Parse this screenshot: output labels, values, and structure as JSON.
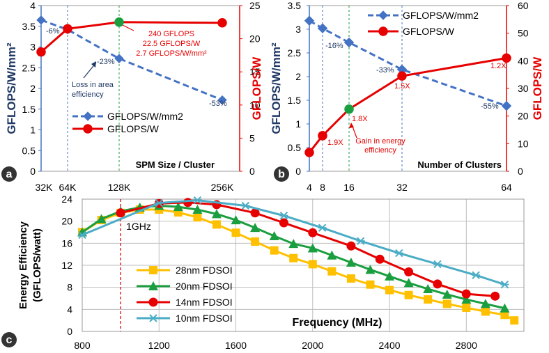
{
  "colors": {
    "blue": "#4472c4",
    "blue_text": "#1f3864",
    "red": "#e60000",
    "green": "#1a9e3f",
    "orange": "#ffc000",
    "teal": "#4bacc6",
    "grid": "#bdbdbd"
  },
  "chart_data": [
    {
      "panel": "a",
      "type": "line",
      "title": "",
      "xlabel": "SPM Size / Cluster",
      "categories": [
        "32K",
        "64K",
        "128K",
        "256K"
      ],
      "y_left": {
        "label": "GFLOPS/W/mm²",
        "lim": [
          0,
          4
        ],
        "ticks": [
          "0",
          "0.5",
          "1",
          "1.5",
          "2",
          "2.5",
          "3",
          "3.5",
          "4"
        ]
      },
      "y_right": {
        "label": "GFLOPS/W",
        "lim": [
          0,
          25
        ],
        "ticks": [
          "0",
          "5",
          "10",
          "15",
          "20",
          "25"
        ]
      },
      "series": [
        {
          "name": "GFLOPS/W/mm2",
          "axis": "left",
          "style": "dashed-diamond",
          "values": [
            3.65,
            3.42,
            2.72,
            1.72
          ],
          "labels": [
            "",
            "-6%",
            "-23%",
            "-53%"
          ]
        },
        {
          "name": "GFLOPS/W",
          "axis": "right",
          "style": "solid-circle",
          "values": [
            18.0,
            21.5,
            22.5,
            22.4
          ]
        }
      ],
      "annotations": {
        "highlight": [
          "240 GFLOPS",
          "22.5 GFLOPS/W",
          "2.7 GFLOPS/W/mm²"
        ],
        "note": [
          "Loss in area",
          "efficiency"
        ]
      },
      "legend": "bottom-left",
      "badge": "a"
    },
    {
      "panel": "b",
      "type": "line",
      "title": "",
      "xlabel": "Number of Clusters",
      "categories": [
        "4",
        "8",
        "16",
        "32",
        "64"
      ],
      "x_values": [
        4,
        8,
        16,
        32,
        64
      ],
      "y_left": {
        "label": "GFLOPS/W/mm²",
        "lim": [
          0,
          3.5
        ],
        "ticks": [
          "0",
          "0.5",
          "1",
          "1.5",
          "2",
          "2.5",
          "3",
          "3.5"
        ]
      },
      "y_right": {
        "label": "GFLOPS/W",
        "lim": [
          0,
          60
        ],
        "ticks": [
          "0",
          "10",
          "20",
          "30",
          "40",
          "50",
          "60"
        ]
      },
      "series": [
        {
          "name": "GFLOPS/W/mm2",
          "axis": "left",
          "style": "dashed-diamond",
          "values": [
            3.18,
            3.02,
            2.72,
            2.15,
            1.38
          ],
          "labels": [
            "",
            "",
            "-16%",
            "-33%",
            "-55%"
          ]
        },
        {
          "name": "GFLOPS/W",
          "axis": "right",
          "style": "solid-circle",
          "values": [
            6.8,
            12.9,
            22.5,
            34.5,
            41.0
          ],
          "labels": [
            "",
            "1.9X",
            "1.8X",
            "1.5X",
            "1.2X"
          ]
        }
      ],
      "annotations": {
        "note": [
          "Gain in energy",
          "efficiency"
        ]
      },
      "legend": "top-right",
      "badge": "b"
    },
    {
      "panel": "c",
      "type": "line",
      "title": "",
      "xlabel": "Frequency (MHz)",
      "ylabel": "Energy Efficiency (GFLOPS/watt)",
      "xlim": [
        800,
        3100
      ],
      "ylim": [
        0,
        24
      ],
      "x_ticks": [
        "800",
        "1200",
        "1600",
        "2000",
        "2400",
        "2800"
      ],
      "y_ticks": [
        "0",
        "4",
        "8",
        "12",
        "16",
        "20",
        "24"
      ],
      "marker_line": {
        "x": 1000,
        "label": "1GHz"
      },
      "series": [
        {
          "name": "28nm FDSOI",
          "marker": "square",
          "x": [
            800,
            900,
            1000,
            1100,
            1200,
            1300,
            1400,
            1500,
            1600,
            1700,
            1800,
            1900,
            2000,
            2100,
            2200,
            2300,
            2400,
            2500,
            2600,
            2700,
            2800,
            2900,
            3000,
            3050
          ],
          "y": [
            18,
            20.2,
            21.5,
            22.1,
            22.1,
            21.6,
            20.7,
            19.4,
            17.9,
            16.3,
            14.7,
            13.3,
            12.2,
            10.9,
            9.6,
            8.5,
            7.5,
            6.6,
            5.8,
            5.0,
            4.3,
            3.6,
            3.0,
            2.0
          ]
        },
        {
          "name": "20nm FDSOI",
          "marker": "triangle",
          "x": [
            800,
            900,
            1000,
            1100,
            1200,
            1300,
            1400,
            1500,
            1600,
            1700,
            1800,
            1900,
            2000,
            2100,
            2200,
            2300,
            2400,
            2500,
            2600,
            2700,
            2800,
            2900,
            3000
          ],
          "y": [
            18,
            20.4,
            21.8,
            22.5,
            22.8,
            22.6,
            22.1,
            21.3,
            20.2,
            18.8,
            17.3,
            15.9,
            15.1,
            13.8,
            12.5,
            11.2,
            10.0,
            8.8,
            7.7,
            6.7,
            5.8,
            5.0,
            4.2
          ]
        },
        {
          "name": "14nm FDSOI",
          "marker": "circle",
          "x": [
            1000,
            1200,
            1350,
            1500,
            1700,
            1850,
            2000,
            2200,
            2350,
            2500,
            2650,
            2800,
            2950
          ],
          "y": [
            21.5,
            23.2,
            23.4,
            23.0,
            21.5,
            19.7,
            17.9,
            15.5,
            13.1,
            10.8,
            8.6,
            6.8,
            6.4
          ]
        },
        {
          "name": "10nm FDSOI",
          "marker": "x",
          "x": [
            800,
            1200,
            1400,
            1650,
            1850,
            2050,
            2250,
            2450,
            2650,
            2850,
            3000
          ],
          "y": [
            17.5,
            23.3,
            23.8,
            22.8,
            21.0,
            18.8,
            16.4,
            14.2,
            12.2,
            10.2,
            8.5
          ]
        }
      ],
      "legend": "bottom-left",
      "badge": "c"
    }
  ]
}
